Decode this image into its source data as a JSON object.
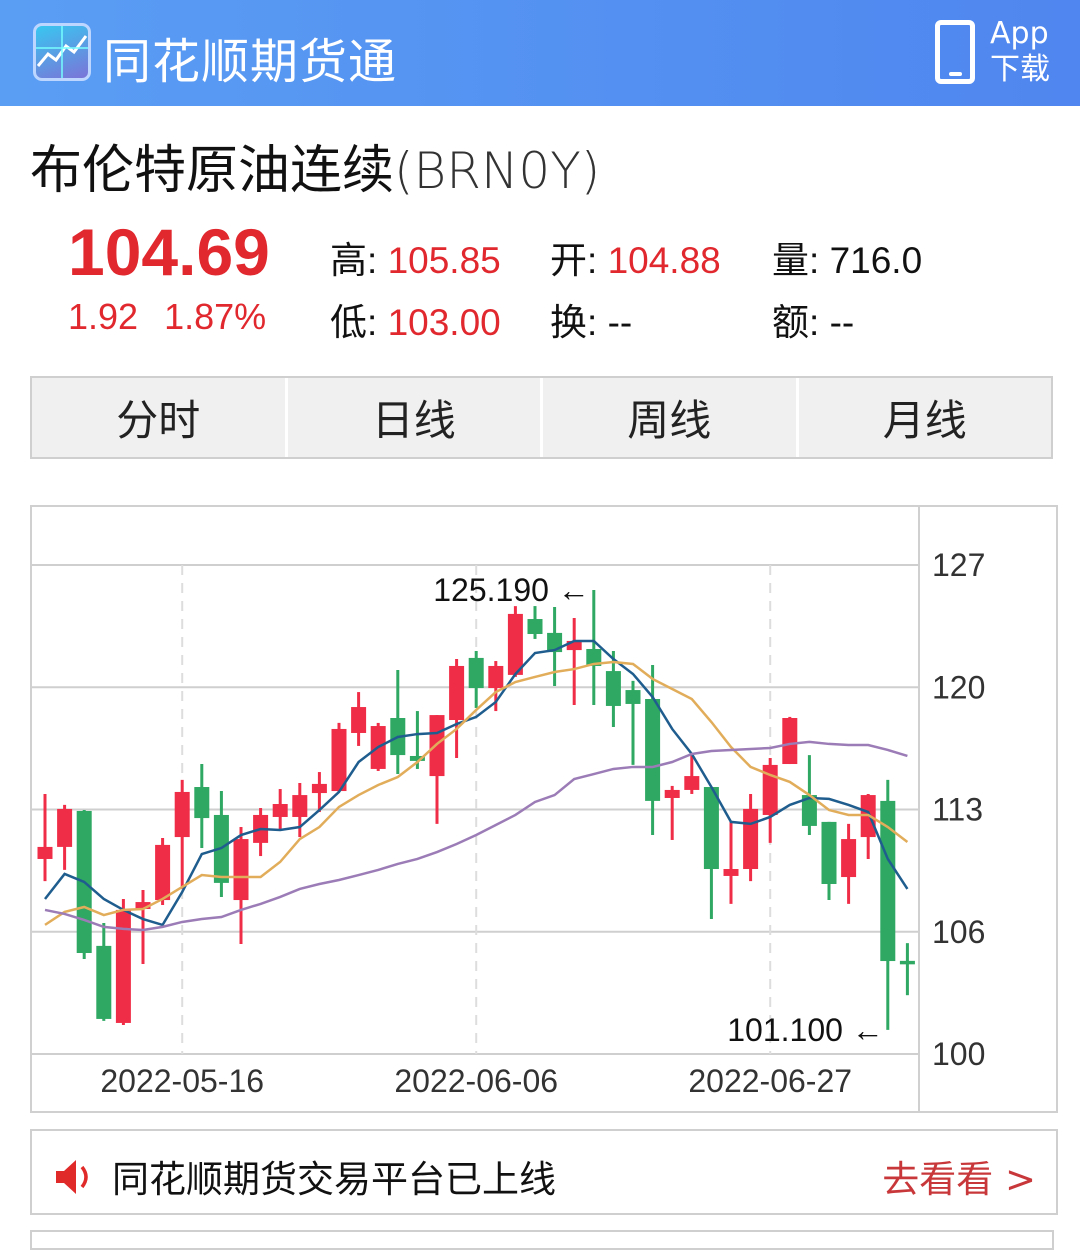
{
  "header": {
    "app_name": "同花顺期货通",
    "download_line1": "App",
    "download_line2": "下载",
    "logo_icon": "chart-logo-icon",
    "phone_icon": "phone-icon"
  },
  "instrument": {
    "name": "布伦特原油连续",
    "code": "(BRN0Y)"
  },
  "quote": {
    "price": "104.69",
    "change": "1.92",
    "change_pct": "1.87%",
    "high_label": "高:",
    "high": "105.85",
    "open_label": "开:",
    "open": "104.88",
    "volume_label": "量:",
    "volume": "716.0",
    "low_label": "低:",
    "low": "103.00",
    "turnover_label": "换:",
    "turnover": "--",
    "amount_label": "额:",
    "amount": "--"
  },
  "tabs": [
    {
      "label": "分时"
    },
    {
      "label": "日线"
    },
    {
      "label": "周线"
    },
    {
      "label": "月线"
    }
  ],
  "colors": {
    "up": "#f02d47",
    "down": "#2ea862",
    "ma_blue": "#1f5d8e",
    "ma_orange": "#e2ad5b",
    "ma_purple": "#9c7cb6",
    "header": "#5a9ef4",
    "price": "#e0282e"
  },
  "notice": {
    "text": "同花顺期货交易平台已上线",
    "link": "去看看 >",
    "icon": "speaker-icon"
  },
  "chart_data": {
    "type": "candlestick",
    "y_ticks": [
      "127",
      "120",
      "113",
      "106",
      "100"
    ],
    "x_tick_labels": [
      {
        "index": 7,
        "label": "2022-05-16"
      },
      {
        "index": 22,
        "label": "2022-06-06"
      },
      {
        "index": 37,
        "label": "2022-06-27"
      }
    ],
    "annotations": [
      {
        "index": 28,
        "label": "125.190 ←",
        "value": 125.19
      },
      {
        "index": 43,
        "label": "101.100 ←",
        "value": 101.1
      }
    ],
    "grid": true,
    "ohlc": [
      [
        110.46,
        114.02,
        109.25,
        111.12
      ],
      [
        111.12,
        113.42,
        109.86,
        113.2
      ],
      [
        113.09,
        113.14,
        104.98,
        105.31
      ],
      [
        105.7,
        106.95,
        101.59,
        101.7
      ],
      [
        101.48,
        108.27,
        101.37,
        107.67
      ],
      [
        107.72,
        108.76,
        104.71,
        108.1
      ],
      [
        108.21,
        111.61,
        107.94,
        111.23
      ],
      [
        111.66,
        114.79,
        108.82,
        114.13
      ],
      [
        114.4,
        115.66,
        111.06,
        112.7
      ],
      [
        112.87,
        114.18,
        108.38,
        109.15
      ],
      [
        108.21,
        112.21,
        105.8,
        111.55
      ],
      [
        111.34,
        113.25,
        110.62,
        112.87
      ],
      [
        112.76,
        114.29,
        112.1,
        113.47
      ],
      [
        112.76,
        114.62,
        111.66,
        113.96
      ],
      [
        114.07,
        115.22,
        113.03,
        114.57
      ],
      [
        114.18,
        117.91,
        114.13,
        117.58
      ],
      [
        117.36,
        119.6,
        116.65,
        118.78
      ],
      [
        115.39,
        117.91,
        115.28,
        117.74
      ],
      [
        118.18,
        120.81,
        115.11,
        116.15
      ],
      [
        116.1,
        118.56,
        115.39,
        115.83
      ],
      [
        115.0,
        118.34,
        112.38,
        118.34
      ],
      [
        118.07,
        121.41,
        115.99,
        121.03
      ],
      [
        121.47,
        121.85,
        118.73,
        119.82
      ],
      [
        119.82,
        121.3,
        118.56,
        121.03
      ],
      [
        120.54,
        124.31,
        120.43,
        123.88
      ],
      [
        123.6,
        124.31,
        122.51,
        122.78
      ],
      [
        122.84,
        124.26,
        119.93,
        121.79
      ],
      [
        121.9,
        123.66,
        118.89,
        122.4
      ],
      [
        121.96,
        125.19,
        118.89,
        121.03
      ],
      [
        120.75,
        121.85,
        117.69,
        118.84
      ],
      [
        119.71,
        120.21,
        115.61,
        118.95
      ],
      [
        119.22,
        121.08,
        111.77,
        113.64
      ],
      [
        113.8,
        114.46,
        111.5,
        114.24
      ],
      [
        114.24,
        116.15,
        114.02,
        115.0
      ],
      [
        114.4,
        114.4,
        107.17,
        109.91
      ],
      [
        109.53,
        112.49,
        108.0,
        109.91
      ],
      [
        109.91,
        114.02,
        109.25,
        113.2
      ],
      [
        112.87,
        115.99,
        111.34,
        115.61
      ],
      [
        115.66,
        118.24,
        115.66,
        118.18
      ],
      [
        113.96,
        116.15,
        111.77,
        112.27
      ],
      [
        112.49,
        112.49,
        108.21,
        109.09
      ],
      [
        109.47,
        112.38,
        108.0,
        111.55
      ],
      [
        111.66,
        114.02,
        110.46,
        113.96
      ],
      [
        113.64,
        114.79,
        101.1,
        104.87
      ],
      [
        104.88,
        105.85,
        103.0,
        104.69
      ]
    ],
    "ma_lines": [
      {
        "color": "#1f5d8e",
        "values": [
          108.27,
          109.64,
          109.2,
          108.27,
          107.67,
          107.17,
          106.85,
          108.65,
          110.73,
          111.06,
          111.77,
          112.1,
          112.05,
          112.21,
          113.14,
          114.13,
          115.77,
          116.59,
          117.14,
          117.3,
          117.36,
          117.85,
          118.24,
          119.06,
          120.59,
          121.74,
          121.9,
          122.4,
          122.4,
          121.41,
          120.59,
          119.33,
          117.58,
          116.21,
          114.4,
          112.49,
          112.38,
          112.76,
          113.42,
          113.8,
          113.75,
          113.42,
          113.03,
          110.46,
          108.82
        ]
      },
      {
        "color": "#e2ad5b",
        "values": [
          106.85,
          107.56,
          107.83,
          107.39,
          107.67,
          107.72,
          108.27,
          108.93,
          109.58,
          109.47,
          109.47,
          109.47,
          110.3,
          111.55,
          112.21,
          113.31,
          113.96,
          114.51,
          114.95,
          115.77,
          116.76,
          117.58,
          118.62,
          119.6,
          120.15,
          120.43,
          120.7,
          120.86,
          121.14,
          121.25,
          121.14,
          120.32,
          119.77,
          119.22,
          117.96,
          116.59,
          115.5,
          115.06,
          114.68,
          113.96,
          113.14,
          112.87,
          112.87,
          112.21,
          111.39
        ]
      },
      {
        "color": "#9c7cb6",
        "values": [
          107.67,
          107.45,
          107.12,
          106.74,
          106.63,
          106.57,
          106.74,
          107.01,
          107.17,
          107.28,
          107.67,
          108.0,
          108.38,
          108.82,
          109.09,
          109.31,
          109.58,
          109.86,
          110.19,
          110.46,
          110.84,
          111.28,
          111.77,
          112.32,
          112.87,
          113.58,
          113.96,
          114.84,
          115.11,
          115.39,
          115.5,
          115.5,
          115.77,
          116.21,
          116.37,
          116.43,
          116.48,
          116.54,
          116.76,
          116.87,
          116.76,
          116.7,
          116.7,
          116.43,
          116.1
        ]
      }
    ]
  }
}
